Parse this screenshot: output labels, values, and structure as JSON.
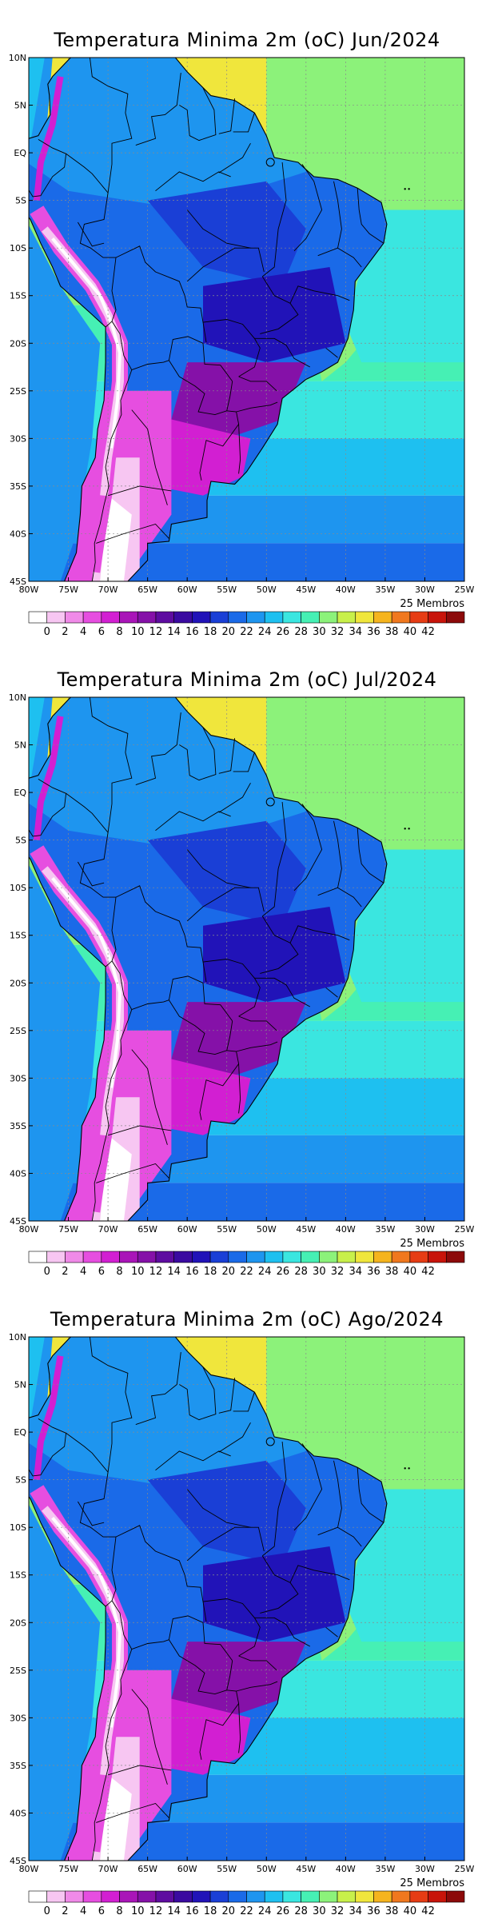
{
  "panels": [
    {
      "title": "Temperatura Minima 2m (oC) Jun/2024",
      "members": "25 Membros"
    },
    {
      "title": "Temperatura Minima 2m (oC) Jul/2024",
      "members": "25 Membros"
    },
    {
      "title": "Temperatura Minima 2m (oC) Ago/2024",
      "members": "25 Membros"
    }
  ],
  "lat_labels": [
    "10N",
    "5N",
    "EQ",
    "5S",
    "10S",
    "15S",
    "20S",
    "25S",
    "30S",
    "35S",
    "40S",
    "45S"
  ],
  "lon_labels": [
    "80W",
    "75W",
    "70W",
    "65W",
    "60W",
    "55W",
    "50W",
    "45W",
    "40W",
    "35W",
    "30W",
    "25W"
  ],
  "colorbar": {
    "labels": [
      "0",
      "2",
      "4",
      "6",
      "8",
      "10",
      "12",
      "14",
      "16",
      "18",
      "20",
      "22",
      "24",
      "26",
      "28",
      "30",
      "32",
      "34",
      "36",
      "38",
      "40",
      "42"
    ],
    "colors": [
      "#ffffff",
      "#f7c6f2",
      "#f08ae8",
      "#e64ee0",
      "#d21fd2",
      "#a915b8",
      "#8511a8",
      "#5e0ca0",
      "#3a0aa0",
      "#2113b8",
      "#1a3fd6",
      "#1a6ae8",
      "#1e95ef",
      "#1ec0f0",
      "#3ae6e0",
      "#46f0b4",
      "#8cf27a",
      "#c8f04a",
      "#f0e63c",
      "#f5b41e",
      "#f0781e",
      "#e63c14",
      "#c8140a",
      "#8c0a0a"
    ]
  }
}
